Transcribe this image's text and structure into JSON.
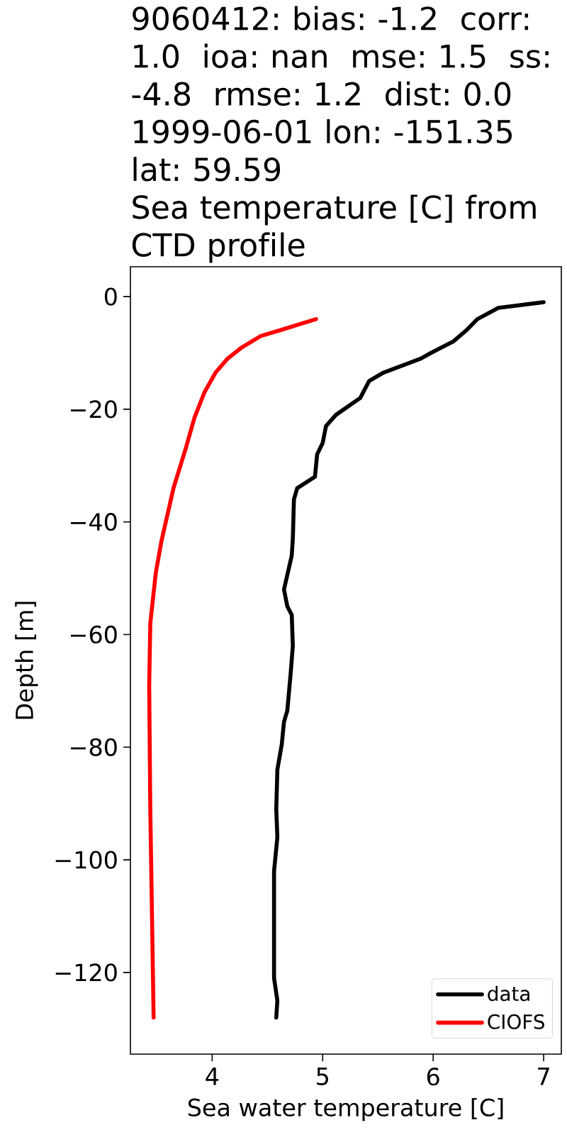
{
  "chart_data": {
    "type": "line",
    "title": "9060412: bias: -1.2  corr: 1.0  ioa: nan  mse: 1.5  ss: -4.8  rmse: 1.2  dist: 0.0 1999-06-01 lon: -151.35 lat: 59.59",
    "subtitle": "Sea temperature [C] from CTD profile",
    "xlabel": "Sea water temperature [C]",
    "ylabel": "Depth [m]",
    "series": [
      {
        "name": "data",
        "color": "#000000",
        "x": [
          7.0,
          6.59,
          6.4,
          6.3,
          6.18,
          5.98,
          5.89,
          5.55,
          5.42,
          5.34,
          5.12,
          5.03,
          5.0,
          4.95,
          4.93,
          4.77,
          4.74,
          4.73,
          4.72,
          4.65,
          4.68,
          4.72,
          4.73,
          4.71,
          4.68,
          4.65,
          4.63,
          4.59,
          4.58,
          4.59,
          4.56,
          4.56,
          4.59,
          4.58
        ],
        "values": [
          -1,
          -2,
          -4,
          -6,
          -8,
          -10,
          -11,
          -13.5,
          -15,
          -18,
          -21,
          -23,
          -26,
          -28,
          -32,
          -34,
          -36,
          -43,
          -46,
          -52,
          -55,
          -56.5,
          -62,
          -67,
          -73.5,
          -75.5,
          -79.5,
          -84,
          -91,
          -96,
          -102,
          -121,
          -125,
          -128
        ]
      },
      {
        "name": "CIOFS",
        "color": "#ff0000",
        "x": [
          4.94,
          4.61,
          4.44,
          4.27,
          4.14,
          4.03,
          3.93,
          3.84,
          3.76,
          3.65,
          3.54,
          3.49,
          3.44,
          3.43,
          3.44,
          3.47
        ],
        "values": [
          -4,
          -6,
          -7,
          -9,
          -11,
          -13.5,
          -17,
          -21.5,
          -27,
          -34,
          -43.5,
          -49,
          -58,
          -69,
          -91,
          -128
        ]
      }
    ],
    "xlim": [
      3.26,
      7.16
    ],
    "ylim": [
      -134.5,
      5.3
    ],
    "xticks": [
      4,
      5,
      6,
      7
    ],
    "yticks": [
      {
        "value": -120,
        "label": "−120"
      },
      {
        "value": -100,
        "label": "−100"
      },
      {
        "value": -80,
        "label": "−80"
      },
      {
        "value": -60,
        "label": "−60"
      },
      {
        "value": -40,
        "label": "−40"
      },
      {
        "value": -20,
        "label": "−20"
      },
      0
    ],
    "legend": "bottom right",
    "line_style": "solid",
    "marker": "none"
  }
}
